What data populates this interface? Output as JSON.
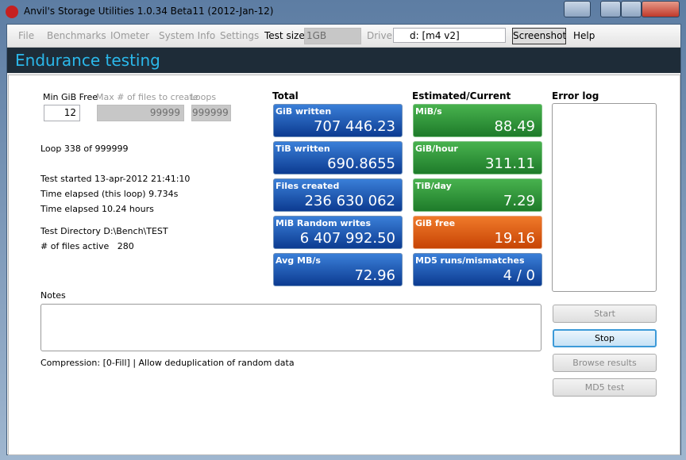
{
  "window": {
    "title": "Anvil's Storage Utilities 1.0.34 Beta11 (2012-Jan-12)"
  },
  "menu": {
    "items": [
      "File",
      "Benchmarks",
      "IOmeter",
      "System Info",
      "Settings"
    ],
    "test_size_label": "Test size",
    "test_size": "1GB",
    "drive_label": "Drive",
    "drive": "d: [m4 v2]",
    "screenshot": "Screenshot",
    "help": "Help"
  },
  "header": {
    "title": "Endurance testing"
  },
  "settings": {
    "min_free_label": "Min GiB Free",
    "min_free": "12",
    "max_files_label": "Max # of files to create",
    "max_files": "99999",
    "loops_label": "Loops",
    "loops": "999999"
  },
  "status": {
    "lines": [
      "Loop 338 of 999999",
      "Test started 13-apr-2012 21:41:10",
      "Time elapsed (this loop) 9.734s",
      "Time elapsed 10.24 hours",
      "Test Directory D:\\Bench\\TEST",
      "# of files active   280"
    ]
  },
  "total": {
    "heading": "Total",
    "tiles": [
      {
        "label": "GiB written",
        "value": "707 446.23"
      },
      {
        "label": "TiB written",
        "value": "690.8655"
      },
      {
        "label": "Files created",
        "value": "236 630 062"
      },
      {
        "label": "MiB Random writes",
        "value": "6 407 992.50"
      },
      {
        "label": "Avg MB/s",
        "value": "72.96"
      }
    ]
  },
  "current": {
    "heading": "Estimated/Current",
    "tiles": [
      {
        "label": "MiB/s",
        "value": "88.49"
      },
      {
        "label": "GiB/hour",
        "value": "311.11"
      },
      {
        "label": "TiB/day",
        "value": "7.29"
      },
      {
        "label": "GiB free",
        "value": "19.16"
      },
      {
        "label": "MD5 runs/mismatches",
        "value": "4 / 0"
      }
    ]
  },
  "error_log": {
    "heading": "Error log"
  },
  "notes": {
    "label": "Notes"
  },
  "compression": "Compression: [0-Fill] | Allow deduplication of random data",
  "buttons": [
    "Start",
    "Stop",
    "Browse results",
    "MD5 test"
  ]
}
